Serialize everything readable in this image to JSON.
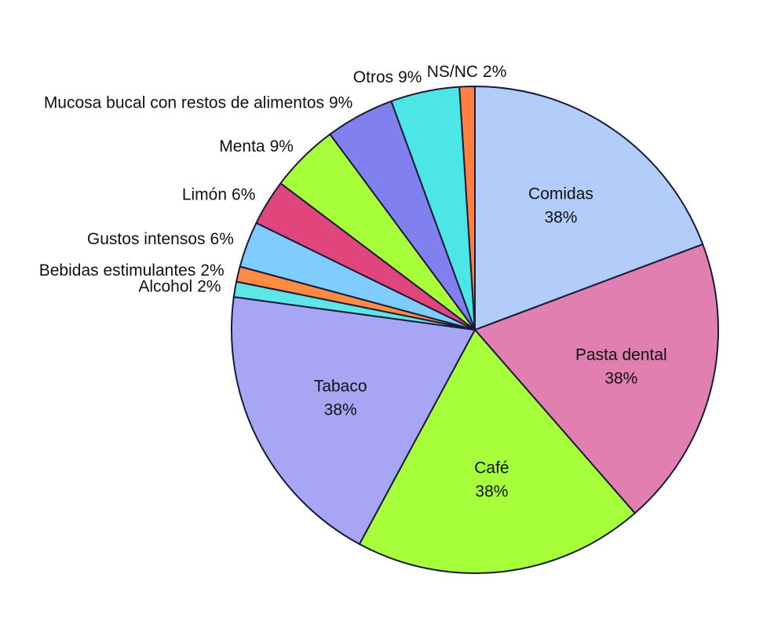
{
  "chart_data": {
    "type": "pie",
    "categories": [
      "Comidas",
      "Pasta dental",
      "Café",
      "Tabaco",
      "Alcohol",
      "Bebidas estimulantes",
      "Gustos intensos",
      "Limón",
      "Menta",
      "Mucosa bucal con restos de alimentos",
      "Otros",
      "NS/NC"
    ],
    "values": [
      38,
      38,
      38,
      38,
      2,
      2,
      6,
      6,
      9,
      9,
      9,
      2
    ],
    "value_labels": [
      "38%",
      "38%",
      "38%",
      "38%",
      "2%",
      "2%",
      "6%",
      "6%",
      "9%",
      "9%",
      "9%",
      "2%"
    ],
    "colors": [
      "#b3cdfb",
      "#e07fb0",
      "#a6ff3a",
      "#a6a6f5",
      "#5ee6e6",
      "#ff8c42",
      "#80ccff",
      "#e0457b",
      "#a6ff3a",
      "#8080f0",
      "#4de6e6",
      "#ff8040"
    ]
  }
}
